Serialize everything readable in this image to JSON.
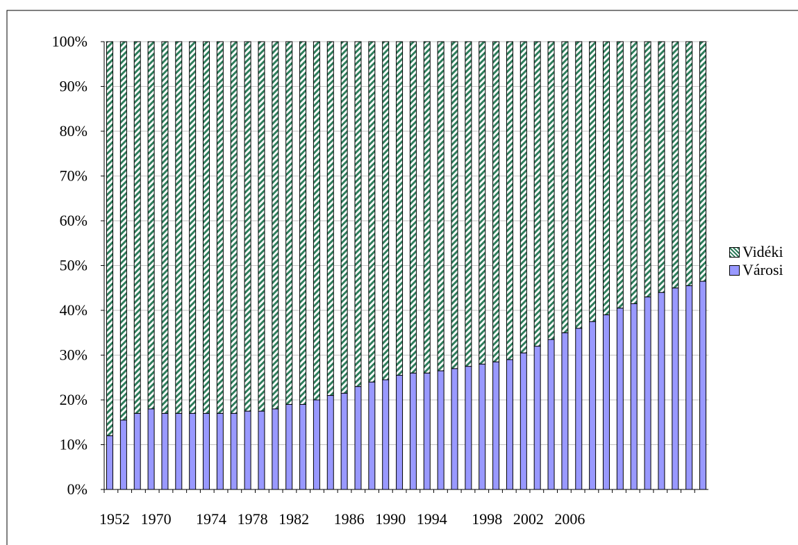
{
  "chart_data": {
    "type": "stacked_bar",
    "categories": [
      "1952",
      null,
      null,
      "1970",
      null,
      null,
      null,
      "1974",
      null,
      null,
      "1978",
      null,
      null,
      "1982",
      null,
      null,
      null,
      "1986",
      null,
      null,
      "1990",
      null,
      null,
      "1994",
      null,
      null,
      null,
      "1998",
      null,
      null,
      "2002",
      null,
      null,
      "2006",
      null,
      null,
      null,
      null,
      null,
      null,
      null,
      null,
      null,
      null
    ],
    "series": [
      {
        "name": "Városi",
        "color": "#9999ff",
        "values": [
          12,
          15.5,
          17,
          18,
          17,
          17,
          17,
          17,
          17,
          17,
          17.5,
          17.5,
          18,
          19,
          19,
          20,
          21,
          21.5,
          23,
          24,
          24.5,
          25.5,
          26,
          26,
          26.5,
          27,
          27.5,
          28,
          28.5,
          29,
          30.5,
          32,
          33.5,
          35,
          36,
          37.5,
          39,
          40.5,
          41.5,
          43,
          44,
          45,
          45.5,
          46.5
        ]
      },
      {
        "name": "Vidéki",
        "color": "#2e7d5b",
        "hatch": true,
        "values": [
          88,
          84.5,
          83,
          82,
          83,
          83,
          83,
          83,
          83,
          83,
          82.5,
          82.5,
          82,
          81,
          81,
          80,
          79,
          78.5,
          77,
          76,
          75.5,
          74.5,
          74,
          74,
          73.5,
          73,
          72.5,
          72,
          71.5,
          71,
          69.5,
          68,
          66.5,
          65,
          64,
          62.5,
          61,
          59.5,
          58.5,
          57,
          56,
          55,
          54.5,
          53.5
        ]
      }
    ],
    "ylim": [
      0,
      100
    ],
    "yticks": [
      {
        "value": 0,
        "label": "0%"
      },
      {
        "value": 10,
        "label": "10%"
      },
      {
        "value": 20,
        "label": "20%"
      },
      {
        "value": 30,
        "label": "30%"
      },
      {
        "value": 40,
        "label": "40%"
      },
      {
        "value": 50,
        "label": "50%"
      },
      {
        "value": 60,
        "label": "60%"
      },
      {
        "value": 70,
        "label": "70%"
      },
      {
        "value": 80,
        "label": "80%"
      },
      {
        "value": 90,
        "label": "90%"
      },
      {
        "value": 100,
        "label": "100%"
      }
    ],
    "grid": true,
    "legend": "right"
  }
}
